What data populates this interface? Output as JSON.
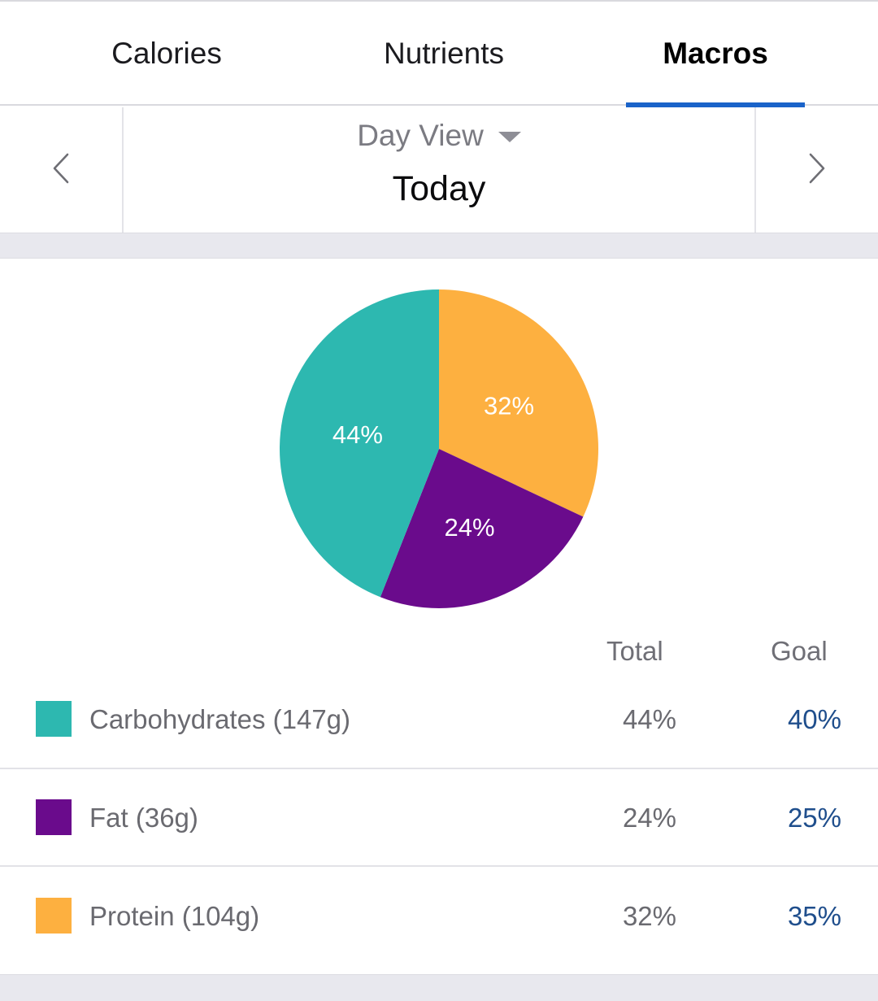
{
  "tabs": [
    {
      "label": "Calories",
      "active": false
    },
    {
      "label": "Nutrients",
      "active": false
    },
    {
      "label": "Macros",
      "active": true
    }
  ],
  "date_nav": {
    "view_label": "Day View",
    "date_label": "Today",
    "prev_icon": "chevron-left-icon",
    "next_icon": "chevron-right-icon"
  },
  "colors": {
    "accent": "#1a63c9",
    "carbs": "#2db8b0",
    "fat": "#6a0b8c",
    "protein": "#fdb040",
    "goal_text": "#1f4e8c"
  },
  "chart_data": {
    "type": "pie",
    "slices": [
      {
        "name": "Protein",
        "value": 32,
        "label": "32%",
        "color": "#fdb040"
      },
      {
        "name": "Fat",
        "value": 24,
        "label": "24%",
        "color": "#6a0b8c"
      },
      {
        "name": "Carbohydrates",
        "value": 44,
        "label": "44%",
        "color": "#2db8b0"
      }
    ],
    "start_angle_deg": 0,
    "direction": "clockwise"
  },
  "table": {
    "headers": {
      "total": "Total",
      "goal": "Goal"
    },
    "rows": [
      {
        "label": "Carbohydrates (147g)",
        "total": "44%",
        "goal": "40%",
        "color": "#2db8b0"
      },
      {
        "label": "Fat (36g)",
        "total": "24%",
        "goal": "25%",
        "color": "#6a0b8c"
      },
      {
        "label": "Protein (104g)",
        "total": "32%",
        "goal": "35%",
        "color": "#fdb040"
      }
    ]
  }
}
